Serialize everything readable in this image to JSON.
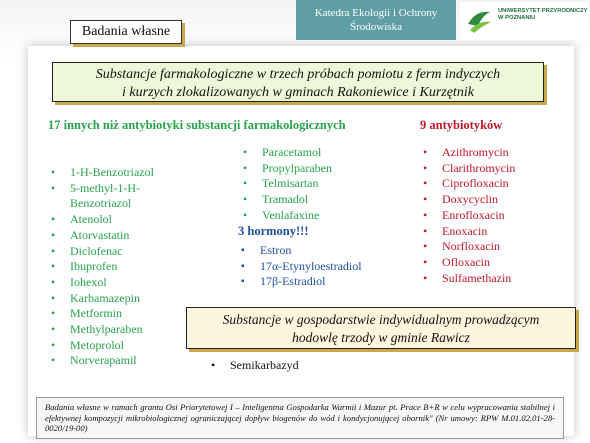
{
  "header": {
    "department_line1": "Katedra Ekologii i Ochrony",
    "department_line2": "Środowiska",
    "logo_text": "UNIWERSYTET PRZYRODNICZY W POZNANIU",
    "logo_icon": "university-leaf-icon"
  },
  "tab_label": "Badania własne",
  "title_line1": "Substancje farmakologiczne w trzech próbach pomiotu z ferm indyczych",
  "title_line2": "i kurzych zlokalizowanych w gminach Rakoniewice i Kurzętnik",
  "pharma": {
    "heading": "17 innych niż antybiotyki substancji farmakologicznych",
    "col1": [
      "1-H-Benzotriazol",
      "5-methyl-1-H-",
      "Benzotriazol",
      "Atenolol",
      "Atorvastatin",
      "Diclofenac",
      "Ibuprofen",
      "Iohexol",
      "Karbamazepin",
      "Metformin",
      "Methylparaben",
      "Metoprolol",
      "Norverapamil"
    ],
    "col2": [
      "Paracetamol",
      "Propylparaben",
      "Telmisartan",
      "Tramadol",
      "Venlafaxine"
    ]
  },
  "hormones": {
    "heading": "3 hormony!!!",
    "items": [
      "Estron",
      "17α-Etynyloestradiol",
      "17β-Estradiol"
    ]
  },
  "antibiotics": {
    "heading": "9 antybiotyków",
    "items": [
      "Azithromycin",
      "Clarithromycin",
      "Ciprofloxacin",
      "Doxycyclin",
      "Enrofloxacin",
      "Enoxacin",
      "Norfloxacin",
      "Ofloxacin",
      "Sulfamethazin"
    ]
  },
  "farm": {
    "line1": "Substancje w gospodarstwie indywidualnym prowadzącym",
    "line2": "hodowlę trzody w gminie Rawicz",
    "items": [
      "Semikarbazyd"
    ]
  },
  "footer_text": "Badania własne w ramach grantu Osi Priorytetowej I – Inteligentna Gospodarka Warmii i Mazur pt. Prace B+R w celu wypracowania stabilnej i efektywnej kompozycji mikrobiologicznej ograniczającej dopływ biogenów do wód i kondycjonującej obornik\" (Nr umowy: RPW M.01.02.01-28-0020/19-00)",
  "colors": {
    "green": "#27a34b",
    "red": "#c0182b",
    "blue": "#1f4fa0",
    "banner": "#5f9fa3",
    "accent_shadow": "#c8a84b"
  }
}
